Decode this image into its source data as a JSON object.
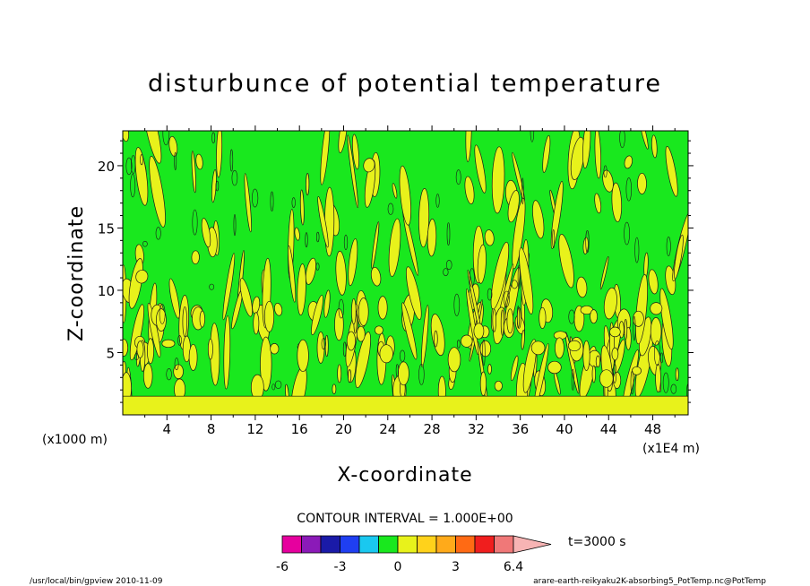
{
  "chart_data": {
    "type": "heatmap",
    "title": "disturbunce of potential temperature",
    "xlabel": "X-coordinate",
    "ylabel": "Z-coordinate",
    "x_unit_label": "(x1000 m)",
    "x_scale_label": "(x1E4 m)",
    "x_ticks": [
      4,
      8,
      12,
      16,
      20,
      24,
      28,
      32,
      36,
      40,
      44,
      48
    ],
    "y_ticks": [
      5,
      10,
      15,
      20
    ],
    "xlim": [
      0,
      51.2
    ],
    "ylim": [
      0,
      22.8
    ],
    "contour_interval_label": "CONTOUR INTERVAL = 1.000E+00",
    "time_label": "t=3000 s",
    "colorbar": {
      "tick_labels": [
        "-6",
        "-3",
        "0",
        "3",
        "6.4"
      ],
      "tick_values": [
        -6,
        -3,
        0,
        3,
        6.4
      ],
      "levels": [
        -6,
        -5,
        -4,
        -3,
        -2,
        -1,
        0,
        1,
        2,
        3,
        4,
        5,
        6
      ],
      "colors": [
        "#e6009e",
        "#8b1ab8",
        "#1a1aa8",
        "#1f3ff2",
        "#1ac8f0",
        "#19e81e",
        "#e8f21b",
        "#ffd21b",
        "#ffaa1a",
        "#ff6a14",
        "#f01e1e",
        "#f07878",
        "#f7b4b4"
      ]
    },
    "fields": {
      "background_color": "#19e81e",
      "positive_color": "#e8f21b",
      "bottom_band_z": [
        0,
        1.5
      ],
      "dominant_value_range": [
        -1,
        1
      ]
    }
  },
  "footer": {
    "left": "/usr/local/bin/gpview  2010-11-09",
    "right": "arare-earth-reikyaku2K-absorbing5_PotTemp.nc@PotTemp"
  }
}
